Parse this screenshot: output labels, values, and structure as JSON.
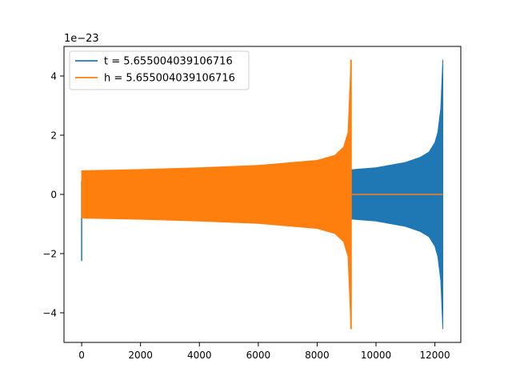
{
  "chart_data": {
    "type": "line",
    "title": "",
    "xlabel": "",
    "ylabel": "",
    "offset_text": "1e−23",
    "xlim": [
      -600,
      12880
    ],
    "ylim": [
      -5,
      5
    ],
    "xticks": [
      0,
      2000,
      4000,
      6000,
      8000,
      10000,
      12000
    ],
    "xtick_labels": [
      "0",
      "2000",
      "4000",
      "6000",
      "8000",
      "10000",
      "12000"
    ],
    "yticks": [
      -4,
      -2,
      0,
      2,
      4
    ],
    "ytick_labels": [
      "−4",
      "−2",
      "0",
      "2",
      "4"
    ],
    "grid": false,
    "legend_position": "top-left",
    "series": [
      {
        "name": "t = 5.655004039106716",
        "color": "#1f77b4",
        "x_range": [
          0,
          12270
        ],
        "envelope": {
          "x": [
            200,
            2000,
            4000,
            6000,
            8000,
            9000,
            10000,
            11000,
            11500,
            11800,
            12000,
            12100,
            12200,
            12270
          ],
          "amplitude": [
            0.47,
            0.51,
            0.56,
            0.62,
            0.73,
            0.82,
            0.9,
            1.08,
            1.25,
            1.43,
            1.75,
            2.1,
            2.9,
            4.55
          ]
        },
        "initial_spike": {
          "x": 0,
          "min": -2.25,
          "max": 0.45
        },
        "tail_end": 12290
      },
      {
        "name": "h = 5.655004039106716",
        "color": "#ff7f0e",
        "x_range": [
          0,
          12270
        ],
        "envelope": {
          "x": [
            0,
            2000,
            4000,
            6000,
            8000,
            8600,
            8900,
            9050,
            9150
          ],
          "amplitude": [
            0.8,
            0.84,
            0.9,
            0.98,
            1.15,
            1.32,
            1.6,
            2.1,
            4.55
          ]
        },
        "flat_after": 9160
      }
    ]
  }
}
